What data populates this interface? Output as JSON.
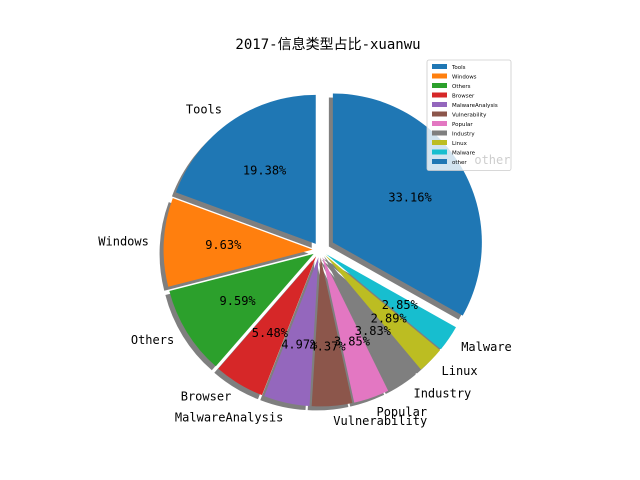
{
  "chart_data": {
    "type": "pie",
    "title": "2017-信息类型占比-xuanwu",
    "slices": [
      {
        "label": "Tools",
        "value": 19.38,
        "pct_label": "19.38%",
        "color": "#1f77b4"
      },
      {
        "label": "Windows",
        "value": 9.63,
        "pct_label": "9.63%",
        "color": "#ff7f0e"
      },
      {
        "label": "Others",
        "value": 9.59,
        "pct_label": "9.59%",
        "color": "#2ca02c"
      },
      {
        "label": "Browser",
        "value": 5.48,
        "pct_label": "5.48%",
        "color": "#d62728"
      },
      {
        "label": "MalwareAnalysis",
        "value": 4.97,
        "pct_label": "4.97%",
        "color": "#9467bd"
      },
      {
        "label": "Vulnerability",
        "value": 4.37,
        "pct_label": "4.37%",
        "color": "#8c564b"
      },
      {
        "label": "Popular",
        "value": 3.85,
        "pct_label": "3.85%",
        "color": "#e377c2"
      },
      {
        "label": "Industry",
        "value": 3.83,
        "pct_label": "3.83%",
        "color": "#7f7f7f"
      },
      {
        "label": "Linux",
        "value": 2.89,
        "pct_label": "2.89%",
        "color": "#bcbd22"
      },
      {
        "label": "Malware",
        "value": 2.85,
        "pct_label": "2.85%",
        "color": "#17becf"
      },
      {
        "label": "other",
        "value": 33.16,
        "pct_label": "33.16%",
        "color": "#1f77b4"
      }
    ],
    "legend_position": "upper-right",
    "shadow": true,
    "exploded": true
  }
}
